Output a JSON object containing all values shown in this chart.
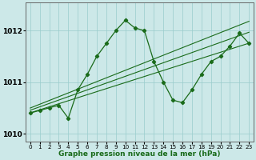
{
  "x": [
    0,
    1,
    2,
    3,
    4,
    5,
    6,
    7,
    8,
    9,
    10,
    11,
    12,
    13,
    14,
    15,
    16,
    17,
    18,
    19,
    20,
    21,
    22,
    23
  ],
  "pressure": [
    1010.4,
    1010.45,
    1010.5,
    1010.55,
    1010.3,
    1010.85,
    1011.15,
    1011.5,
    1011.75,
    1012.0,
    1012.2,
    1012.05,
    1012.0,
    1011.4,
    1011.0,
    1010.65,
    1010.6,
    1010.85,
    1011.15,
    1011.4,
    1011.5,
    1011.7,
    1011.95,
    1011.75
  ],
  "trend1": [
    1010.38,
    1010.44,
    1010.5,
    1010.56,
    1010.36,
    1010.62,
    1010.76,
    1010.95,
    1011.05,
    1011.15,
    1011.22,
    1011.28,
    1011.3,
    1011.32,
    1011.34,
    1011.36,
    1011.38,
    1011.4,
    1011.42,
    1011.45,
    1011.47,
    1011.5,
    1011.55,
    1011.6
  ],
  "trend2": [
    1010.4,
    1010.46,
    1010.52,
    1010.58,
    1010.4,
    1010.68,
    1010.84,
    1011.05,
    1011.17,
    1011.28,
    1011.36,
    1011.42,
    1011.44,
    1011.47,
    1011.49,
    1011.51,
    1011.53,
    1011.56,
    1011.58,
    1011.62,
    1011.65,
    1011.68,
    1011.73,
    1011.78
  ],
  "trend3": [
    1010.42,
    1010.48,
    1010.54,
    1010.6,
    1010.44,
    1010.74,
    1010.92,
    1011.15,
    1011.29,
    1011.41,
    1011.5,
    1011.56,
    1011.58,
    1011.62,
    1011.64,
    1011.66,
    1011.68,
    1011.72,
    1011.74,
    1011.79,
    1011.83,
    1011.86,
    1011.91,
    1011.96
  ],
  "line_color": "#1a6b1a",
  "bg_color": "#cce8e8",
  "grid_color": "#99cccc",
  "xlabel": "Graphe pression niveau de la mer (hPa)",
  "yticks": [
    1010,
    1011,
    1012
  ],
  "xlim": [
    -0.5,
    23.5
  ],
  "ylim": [
    1009.85,
    1012.55
  ]
}
